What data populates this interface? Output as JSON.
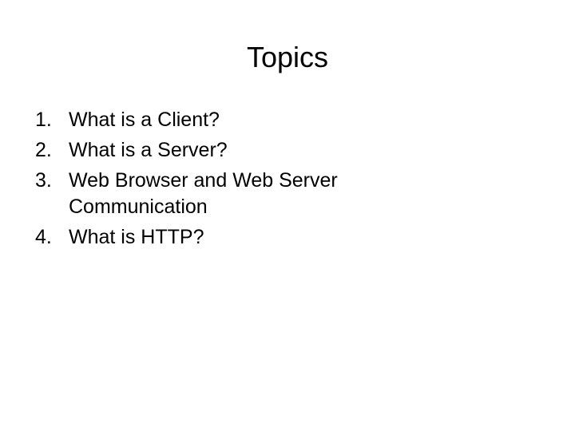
{
  "slide": {
    "title": "Topics",
    "items": [
      {
        "number": "1.",
        "text": "What is a Client?"
      },
      {
        "number": "2.",
        "text": "What is a Server?"
      },
      {
        "number": "3.",
        "text": "Web Browser and Web Server Communication"
      },
      {
        "number": "4.",
        "text": "What is HTTP?"
      }
    ]
  }
}
